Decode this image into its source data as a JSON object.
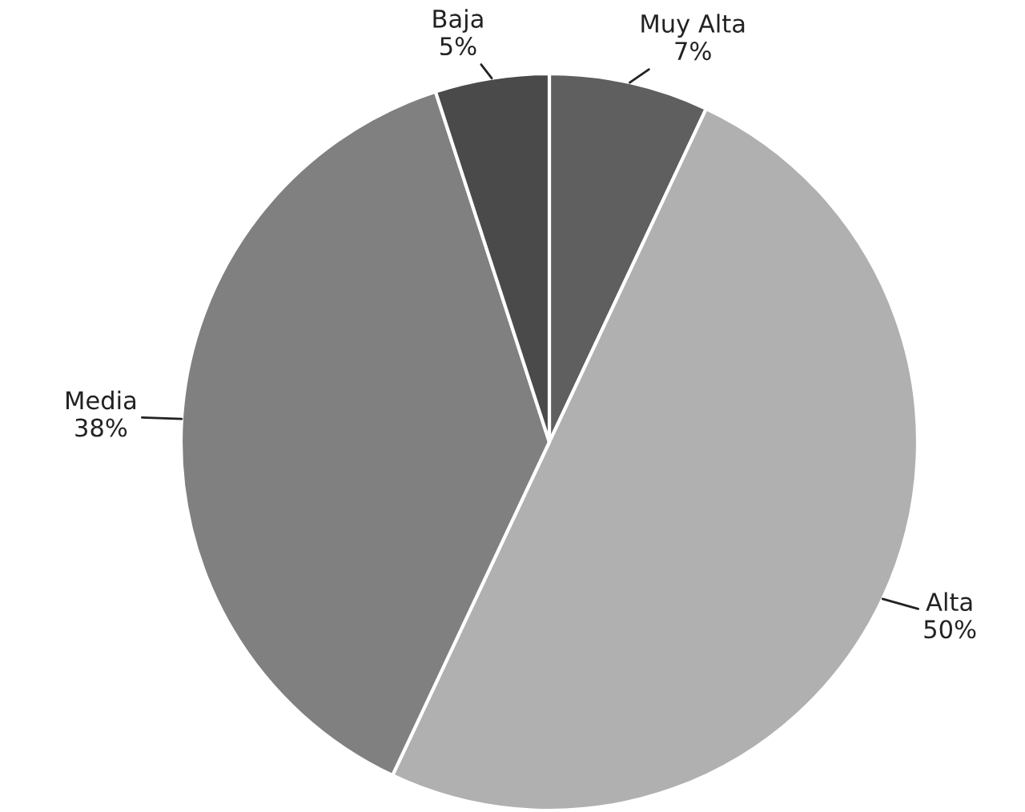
{
  "chart_data": {
    "type": "pie",
    "categories": [
      "Muy Alta",
      "Alta",
      "Media",
      "Baja"
    ],
    "values": [
      7,
      50,
      38,
      5
    ],
    "value_labels": [
      "7%",
      "50%",
      "38%",
      "5%"
    ],
    "colors": [
      "#5f5f5f",
      "#b0b0b0",
      "#808080",
      "#4a4a4a"
    ]
  }
}
